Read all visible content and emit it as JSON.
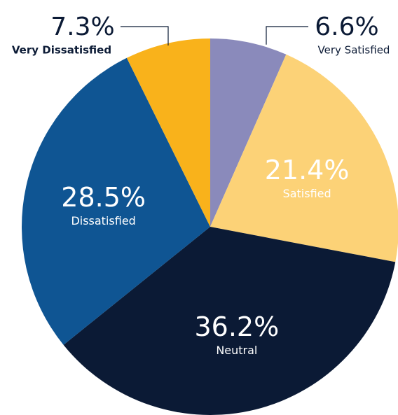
{
  "chart_data": {
    "type": "pie",
    "categories": [
      "Very Satisfied",
      "Satisfied",
      "Neutral",
      "Dissatisfied",
      "Very Dissatisfied"
    ],
    "values": [
      6.6,
      21.4,
      36.2,
      28.5,
      7.3
    ],
    "value_labels": [
      "6.6%",
      "21.4%",
      "36.2%",
      "28.5%",
      "7.3%"
    ],
    "colors": [
      "#8a8abb",
      "#fcd277",
      "#0b1a35",
      "#0f5593",
      "#f9b21b"
    ]
  }
}
